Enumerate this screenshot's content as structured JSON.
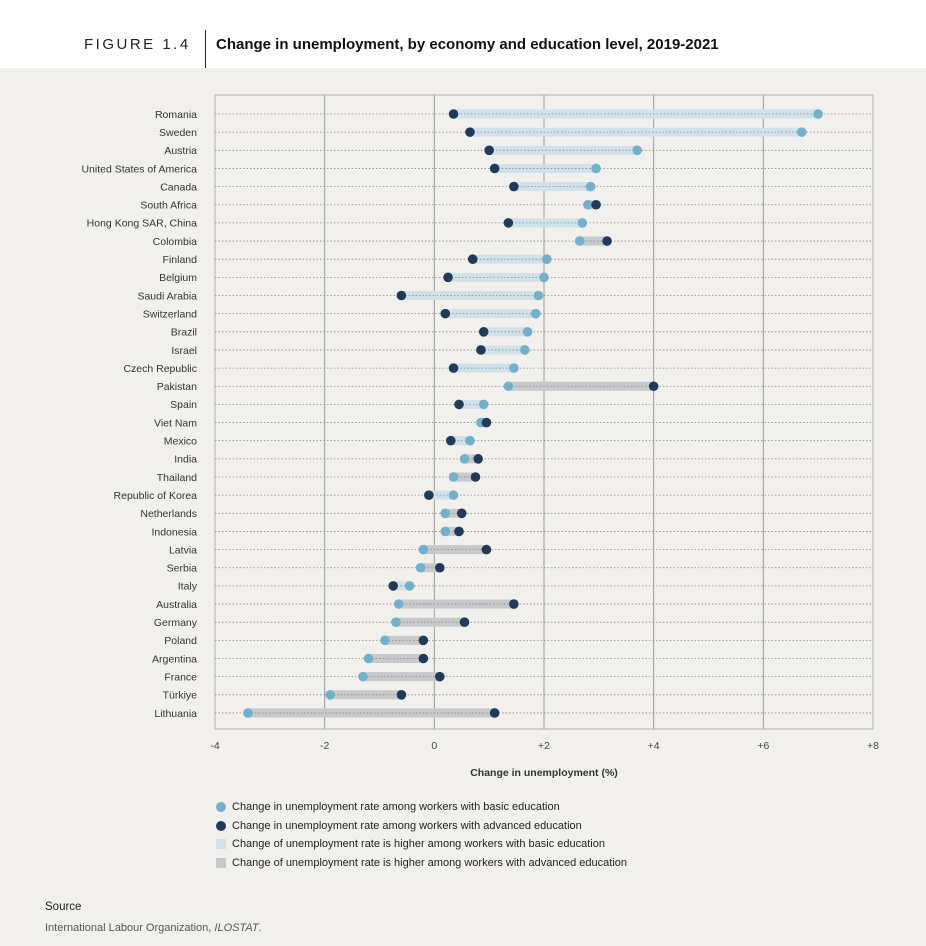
{
  "header": {
    "figure_number": "FIGURE 1.4",
    "title": "Change in unemployment, by economy and education level, 2019-2021"
  },
  "colors": {
    "basic": "#73b0cb",
    "advanced": "#203a5a",
    "band_basic_higher": "#d0e1ea",
    "band_advanced_higher": "#c8c9cb",
    "grid": "#9a9a9a",
    "frame": "#b5b5b5"
  },
  "chart_data": {
    "type": "dumbbell",
    "xlabel": "Change in unemployment (%)",
    "xlim": [
      -4,
      8
    ],
    "xticks": [
      -4,
      -2,
      0,
      2,
      4,
      6,
      8
    ],
    "xtick_labels": [
      "-4",
      "-2",
      "0",
      "+2",
      "+4",
      "+6",
      "+8"
    ],
    "grid": true,
    "series": [
      {
        "name": "Change in unemployment rate among workers with basic education",
        "key": "basic"
      },
      {
        "name": "Change in unemployment rate among workers with advanced education",
        "key": "advanced"
      }
    ],
    "rows": [
      {
        "country": "Romania",
        "basic": 7.0,
        "advanced": 0.35
      },
      {
        "country": "Sweden",
        "basic": 6.7,
        "advanced": 0.65
      },
      {
        "country": "Austria",
        "basic": 3.7,
        "advanced": 1.0
      },
      {
        "country": "United States of America",
        "basic": 2.95,
        "advanced": 1.1
      },
      {
        "country": "Canada",
        "basic": 2.85,
        "advanced": 1.45
      },
      {
        "country": "South Africa",
        "basic": 2.8,
        "advanced": 2.95
      },
      {
        "country": "Hong Kong SAR, China",
        "basic": 2.7,
        "advanced": 1.35
      },
      {
        "country": "Colombia",
        "basic": 2.65,
        "advanced": 3.15
      },
      {
        "country": "Finland",
        "basic": 2.05,
        "advanced": 0.7
      },
      {
        "country": "Belgium",
        "basic": 2.0,
        "advanced": 0.25
      },
      {
        "country": "Saudi Arabia",
        "basic": 1.9,
        "advanced": -0.6
      },
      {
        "country": "Switzerland",
        "basic": 1.85,
        "advanced": 0.2
      },
      {
        "country": "Brazil",
        "basic": 1.7,
        "advanced": 0.9
      },
      {
        "country": "Israel",
        "basic": 1.65,
        "advanced": 0.85
      },
      {
        "country": "Czech Republic",
        "basic": 1.45,
        "advanced": 0.35
      },
      {
        "country": "Pakistan",
        "basic": 1.35,
        "advanced": 4.0
      },
      {
        "country": "Spain",
        "basic": 0.9,
        "advanced": 0.45
      },
      {
        "country": "Viet Nam",
        "basic": 0.85,
        "advanced": 0.95
      },
      {
        "country": "Mexico",
        "basic": 0.65,
        "advanced": 0.3
      },
      {
        "country": "India",
        "basic": 0.55,
        "advanced": 0.8
      },
      {
        "country": "Thailand",
        "basic": 0.35,
        "advanced": 0.75
      },
      {
        "country": "Republic of Korea",
        "basic": 0.35,
        "advanced": -0.1
      },
      {
        "country": "Netherlands",
        "basic": 0.2,
        "advanced": 0.5
      },
      {
        "country": "Indonesia",
        "basic": 0.2,
        "advanced": 0.45
      },
      {
        "country": "Latvia",
        "basic": -0.2,
        "advanced": 0.95
      },
      {
        "country": "Serbia",
        "basic": -0.25,
        "advanced": 0.1
      },
      {
        "country": "Italy",
        "basic": -0.45,
        "advanced": -0.75
      },
      {
        "country": "Australia",
        "basic": -0.65,
        "advanced": 1.45
      },
      {
        "country": "Germany",
        "basic": -0.7,
        "advanced": 0.55
      },
      {
        "country": "Poland",
        "basic": -0.9,
        "advanced": -0.2
      },
      {
        "country": "Argentina",
        "basic": -1.2,
        "advanced": -0.2
      },
      {
        "country": "France",
        "basic": -1.3,
        "advanced": 0.1
      },
      {
        "country": "Türkiye",
        "basic": -1.9,
        "advanced": -0.6
      },
      {
        "country": "Lithuania",
        "basic": -3.4,
        "advanced": 1.1
      }
    ]
  },
  "legend": {
    "basic": "Change in unemployment rate among workers with basic education",
    "advanced": "Change in unemployment rate among workers with advanced education",
    "band_basic_higher": "Change of unemployment rate is higher among workers with basic education",
    "band_advanced_higher": "Change of unemployment rate is higher among workers with advanced education"
  },
  "source": {
    "label": "Source",
    "text_plain": "International Labour Organization, ",
    "text_italic": "ILOSTAT",
    "text_end": "."
  }
}
